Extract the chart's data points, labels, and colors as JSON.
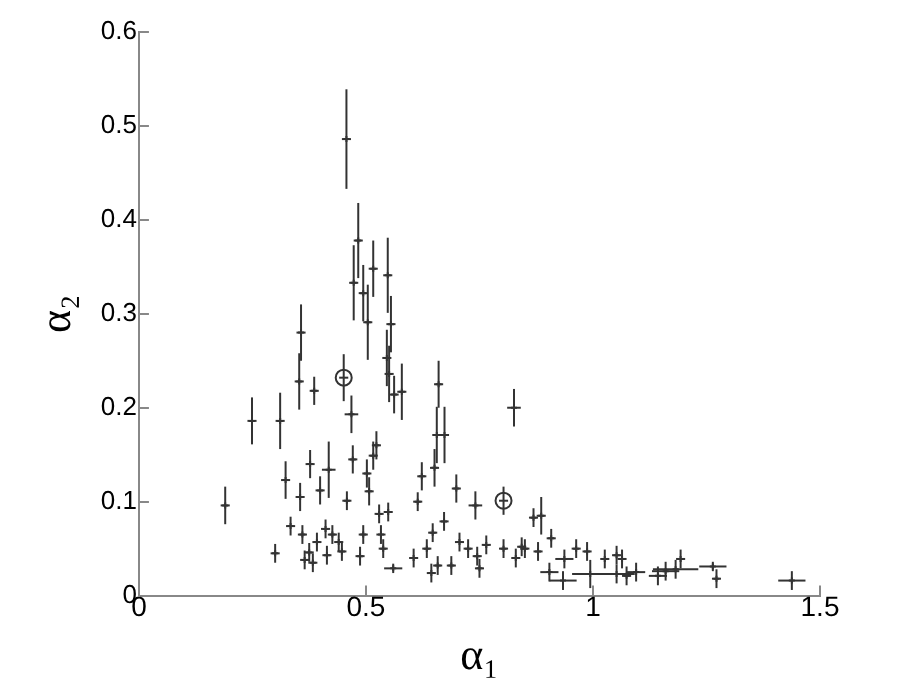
{
  "chart_data": {
    "type": "scatter",
    "xlabel": "α₁",
    "ylabel": "α₂",
    "xlim": [
      0,
      1.5
    ],
    "ylim": [
      0,
      0.6
    ],
    "xticks": [
      0,
      0.5,
      1,
      1.5
    ],
    "yticks": [
      0,
      0.1,
      0.2,
      0.3,
      0.4,
      0.5,
      0.6
    ],
    "grid": false,
    "legend": false,
    "series": [
      {
        "color": "#333333",
        "marker": "cross",
        "x": [
          0.19,
          0.249,
          0.311,
          0.357,
          0.353,
          0.386,
          0.468,
          0.579,
          0.562,
          0.551,
          0.546,
          0.504,
          0.66,
          0.656,
          0.673,
          0.826,
          0.377,
          0.418,
          0.471,
          0.523,
          0.516,
          0.502,
          0.623,
          0.651,
          0.323,
          0.355,
          0.399,
          0.458,
          0.507,
          0.699,
          0.741,
          0.334,
          0.529,
          0.549,
          0.614,
          0.647,
          0.672,
          0.533,
          0.494,
          0.3,
          0.36,
          0.392,
          0.411,
          0.426,
          0.44,
          0.375,
          0.365,
          0.383,
          0.414,
          0.447,
          0.487,
          0.538,
          0.56,
          0.605,
          0.634,
          0.644,
          0.658,
          0.688,
          0.706,
          0.725,
          0.745,
          0.75,
          0.765,
          0.803,
          0.83,
          0.85,
          0.869,
          0.886,
          0.908,
          0.879,
          0.937,
          0.963,
          0.987,
          0.904,
          0.934,
          0.994,
          1.026,
          1.052,
          1.064,
          1.052,
          1.074,
          1.095,
          1.143,
          1.16,
          1.182,
          1.193,
          1.264,
          1.272,
          1.438,
          0.843,
          0.457,
          0.483,
          0.473,
          0.494,
          0.516,
          0.548,
          0.555
        ],
        "values": [
          0.096,
          0.186,
          0.186,
          0.28,
          0.228,
          0.218,
          0.193,
          0.217,
          0.214,
          0.236,
          0.253,
          0.291,
          0.225,
          0.171,
          0.171,
          0.2,
          0.14,
          0.134,
          0.145,
          0.16,
          0.149,
          0.13,
          0.127,
          0.136,
          0.123,
          0.105,
          0.112,
          0.101,
          0.111,
          0.114,
          0.096,
          0.074,
          0.087,
          0.089,
          0.1,
          0.067,
          0.079,
          0.065,
          0.065,
          0.045,
          0.065,
          0.057,
          0.071,
          0.065,
          0.057,
          0.046,
          0.038,
          0.035,
          0.043,
          0.047,
          0.042,
          0.05,
          0.029,
          0.04,
          0.05,
          0.024,
          0.032,
          0.032,
          0.057,
          0.05,
          0.042,
          0.029,
          0.054,
          0.05,
          0.04,
          0.05,
          0.083,
          0.085,
          0.061,
          0.047,
          0.039,
          0.05,
          0.047,
          0.025,
          0.016,
          0.023,
          0.039,
          0.043,
          0.039,
          0.023,
          0.021,
          0.025,
          0.021,
          0.026,
          0.028,
          0.039,
          0.031,
          0.018,
          0.016,
          0.052,
          0.486,
          0.378,
          0.333,
          0.322,
          0.348,
          0.341,
          0.289
        ],
        "errors": [
          0.02,
          0.025,
          0.03,
          0.03,
          0.03,
          0.015,
          0.02,
          0.03,
          0.02,
          0.03,
          0.03,
          0.04,
          0.025,
          0.03,
          0.03,
          0.02,
          0.015,
          0.03,
          0.015,
          0.015,
          0.015,
          0.015,
          0.015,
          0.02,
          0.02,
          0.015,
          0.015,
          0.01,
          0.015,
          0.015,
          0.015,
          0.01,
          0.01,
          0.01,
          0.01,
          0.01,
          0.01,
          0.01,
          0.01,
          0.01,
          0.01,
          0.01,
          0.01,
          0.01,
          0.01,
          0.01,
          0.01,
          0.01,
          0.01,
          0.01,
          0.01,
          0.01,
          0.005,
          0.01,
          0.01,
          0.01,
          0.01,
          0.01,
          0.01,
          0.01,
          0.01,
          0.01,
          0.01,
          0.01,
          0.01,
          0.01,
          0.01,
          0.02,
          0.01,
          0.01,
          0.01,
          0.01,
          0.01,
          0.01,
          0.01,
          0.015,
          0.01,
          0.01,
          0.01,
          0.01,
          0.01,
          0.01,
          0.01,
          0.01,
          0.01,
          0.01,
          0.005,
          0.01,
          0.01,
          0.01,
          0.053,
          0.04,
          0.04,
          0.03,
          0.03,
          0.04,
          0.03
        ],
        "xerrors": [
          0.01,
          0.01,
          0.01,
          0.01,
          0.01,
          0.01,
          0.015,
          0.01,
          0.01,
          0.01,
          0.01,
          0.01,
          0.01,
          0.01,
          0.01,
          0.015,
          0.01,
          0.015,
          0.01,
          0.01,
          0.01,
          0.01,
          0.01,
          0.01,
          0.01,
          0.01,
          0.01,
          0.01,
          0.01,
          0.01,
          0.015,
          0.01,
          0.01,
          0.01,
          0.01,
          0.01,
          0.01,
          0.01,
          0.01,
          0.01,
          0.01,
          0.01,
          0.01,
          0.01,
          0.01,
          0.01,
          0.01,
          0.01,
          0.01,
          0.01,
          0.01,
          0.01,
          0.02,
          0.01,
          0.01,
          0.01,
          0.01,
          0.01,
          0.01,
          0.01,
          0.01,
          0.01,
          0.01,
          0.01,
          0.01,
          0.01,
          0.01,
          0.01,
          0.01,
          0.01,
          0.02,
          0.01,
          0.01,
          0.02,
          0.03,
          0.04,
          0.01,
          0.01,
          0.01,
          0.04,
          0.01,
          0.02,
          0.02,
          0.03,
          0.05,
          0.01,
          0.03,
          0.01,
          0.03,
          0.01,
          0.01,
          0.01,
          0.01,
          0.01,
          0.01,
          0.01,
          0.01
        ]
      },
      {
        "color": "#333333",
        "marker": "circle",
        "x": [
          0.451,
          0.803
        ],
        "values": [
          0.232,
          0.101
        ],
        "errors": [
          0.025,
          0.015
        ],
        "xerrors": [
          0.01,
          0.01
        ]
      }
    ]
  }
}
